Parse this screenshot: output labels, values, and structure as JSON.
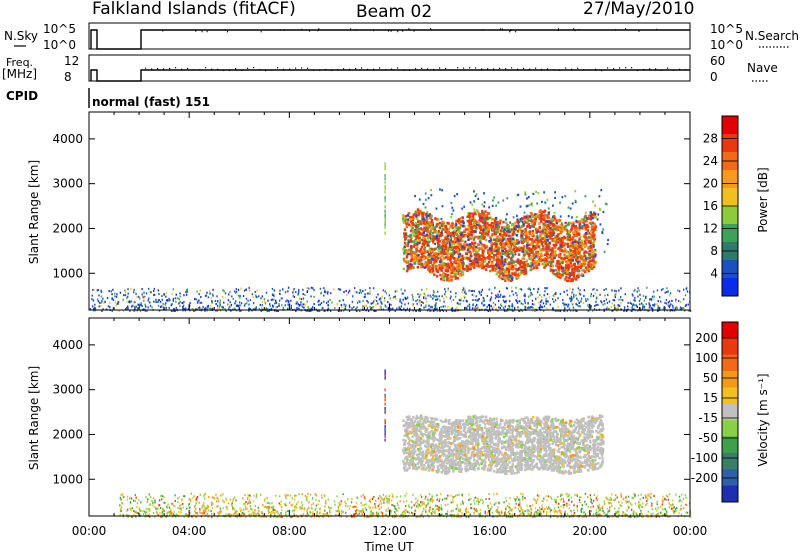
{
  "header": {
    "site": "Falkland Islands (fitACF)",
    "beam": "Beam 02",
    "date": "27/May/2010"
  },
  "strip_labels": {
    "nsky": "N.Sky",
    "nsearch": "N.Search",
    "freq_line1": "Freq.",
    "freq_line2": "[MHz]",
    "nave": "Nave",
    "cpid": "CPID",
    "cpid_value": "normal (fast) 151",
    "nsky_ticks": [
      "10^5",
      "10^0"
    ],
    "nsearch_ticks": [
      "10^5",
      "10^0"
    ],
    "freq_ticks": [
      "12",
      "8"
    ],
    "nave_ticks": [
      "60",
      "0"
    ]
  },
  "time_axis": {
    "label": "Time UT",
    "ticks": [
      "00:00",
      "04:00",
      "08:00",
      "12:00",
      "16:00",
      "20:00",
      "00:00"
    ]
  },
  "chart_data": [
    {
      "type": "heatmap",
      "title": "Power",
      "xlabel": "Time UT",
      "ylabel": "Slant Range [km]",
      "xlim": [
        0,
        24
      ],
      "ylim": [
        180,
        4600
      ],
      "yticks": [
        1000,
        2000,
        3000,
        4000
      ],
      "colorbar": {
        "label": "Power [dB]",
        "ticks": [
          "4",
          "8",
          "12",
          "16",
          "20",
          "24",
          "28"
        ],
        "colors": [
          "#0a2ce8",
          "#1e4fbf",
          "#2f7a6a",
          "#3ea05a",
          "#8ccc3a",
          "#f0c020",
          "#f59a1a",
          "#f06a18",
          "#e83a12",
          "#e00000"
        ]
      },
      "regions": [
        {
          "name": "ground scatter band",
          "t_start": 0,
          "t_end": 24,
          "range_km": [
            180,
            700
          ],
          "dominant_power_db": 4
        },
        {
          "name": "ionospheric echo",
          "t_start": 12.5,
          "t_end": 20.2,
          "range_km": [
            1000,
            2300
          ],
          "dominant_power_db": 28
        },
        {
          "name": "echo halo",
          "t_start": 12.3,
          "t_end": 20.7,
          "range_km": [
            1400,
            2900
          ],
          "dominant_power_db": 8
        }
      ]
    },
    {
      "type": "heatmap",
      "title": "Velocity",
      "xlabel": "Time UT",
      "ylabel": "Slant Range [km]",
      "xlim": [
        0,
        24
      ],
      "ylim": [
        180,
        4600
      ],
      "yticks": [
        1000,
        2000,
        3000,
        4000
      ],
      "colorbar": {
        "label": "Velocity [m s⁻¹]",
        "ticks": [
          "200",
          "100",
          "50",
          "15",
          "-15",
          "-50",
          "-100",
          "-200"
        ],
        "colors": [
          "#1f2fb0",
          "#2f5fa8",
          "#3c7d6a",
          "#3f9f4a",
          "#88d048",
          "#c0c0c0",
          "#f2c020",
          "#f39a1a",
          "#f06a18",
          "#e83a12",
          "#e00000"
        ]
      },
      "regions": [
        {
          "name": "ground scatter band",
          "t_start": 1.2,
          "t_end": 24,
          "range_km": [
            180,
            700
          ],
          "dominant_velocity_ms": -15
        },
        {
          "name": "ionospheric echo",
          "t_start": 12.5,
          "t_end": 20.5,
          "range_km": [
            1200,
            2400
          ],
          "dominant_velocity_ms": 0
        }
      ]
    }
  ]
}
